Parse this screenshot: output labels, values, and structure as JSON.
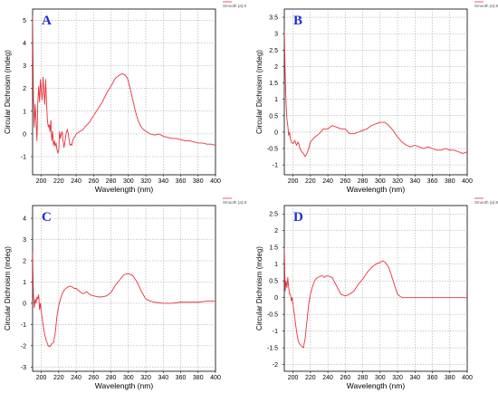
{
  "colors": {
    "series": "#e8323c",
    "label": "#1c2bd1",
    "grid": "#9a9a9a",
    "axis": "#000000"
  },
  "chart_data": [
    {
      "type": "line",
      "panel_label": "A",
      "xlabel": "Wavelength (nm)",
      "ylabel": "Circular Dichroism (mdeg)",
      "xlim": [
        190,
        400
      ],
      "ylim": [
        -1.8,
        5.5
      ],
      "grid": true,
      "legend_position": "top-right",
      "xticks": [
        200,
        220,
        240,
        260,
        280,
        300,
        320,
        340,
        360,
        380,
        400
      ],
      "yticks": [
        -1,
        0,
        1,
        2,
        3,
        4,
        5
      ],
      "series": [
        {
          "name": "Smooth (a):8",
          "x": [
            190,
            191,
            192,
            193,
            194,
            195,
            196,
            197,
            198,
            199,
            200,
            201,
            202,
            203,
            204,
            205,
            206,
            207,
            208,
            209,
            210,
            211,
            212,
            213,
            214,
            215,
            216,
            217,
            218,
            219,
            220,
            221,
            222,
            223,
            224,
            225,
            226,
            227,
            228,
            229,
            230,
            231,
            232,
            233,
            234,
            235,
            236,
            237,
            238,
            239,
            240,
            242,
            244,
            246,
            248,
            250,
            255,
            260,
            265,
            270,
            275,
            280,
            285,
            290,
            293,
            296,
            299,
            302,
            305,
            308,
            311,
            314,
            317,
            320,
            325,
            330,
            335,
            340,
            345,
            350,
            355,
            360,
            365,
            370,
            375,
            380,
            385,
            390,
            395,
            400
          ],
          "y": [
            5.2,
            1.5,
            0.3,
            1.3,
            0.6,
            -0.3,
            1.4,
            2.1,
            1.4,
            2.4,
            1.9,
            1.5,
            2.5,
            1.9,
            1.3,
            2.4,
            1.4,
            0.6,
            0.3,
            0.4,
            0.1,
            0.6,
            -0.3,
            0.1,
            -0.5,
            -0.3,
            -0.55,
            -0.4,
            -0.7,
            -0.85,
            -0.7,
            0.1,
            -0.2,
            0.0,
            0.1,
            -0.3,
            -0.6,
            -0.4,
            -0.1,
            0.1,
            0.2,
            0.0,
            -0.3,
            -0.5,
            -0.45,
            -0.5,
            -0.3,
            -0.2,
            -0.15,
            -0.1,
            0.0,
            0.05,
            0.1,
            0.15,
            0.2,
            0.3,
            0.5,
            0.8,
            1.1,
            1.4,
            1.8,
            2.1,
            2.45,
            2.6,
            2.65,
            2.6,
            2.45,
            2.0,
            1.5,
            1.0,
            0.6,
            0.35,
            0.2,
            0.12,
            0.0,
            -0.05,
            0.0,
            -0.1,
            -0.15,
            -0.2,
            -0.2,
            -0.25,
            -0.3,
            -0.3,
            -0.35,
            -0.4,
            -0.4,
            -0.45,
            -0.45,
            -0.5
          ]
        }
      ]
    },
    {
      "type": "line",
      "panel_label": "B",
      "xlabel": "Wavelength (nm)",
      "ylabel": "Circular Dichroism (mdeg)",
      "xlim": [
        190,
        400
      ],
      "ylim": [
        -1.3,
        3.75
      ],
      "grid": true,
      "legend_position": "top-right",
      "xticks": [
        200,
        220,
        240,
        260,
        280,
        300,
        320,
        340,
        360,
        380,
        400
      ],
      "yticks": [
        -1,
        -0.5,
        0,
        0.5,
        1,
        1.5,
        2,
        2.5,
        3,
        3.5
      ],
      "series": [
        {
          "name": "Smooth (a):8",
          "x": [
            190,
            191,
            192,
            193,
            194,
            195,
            196,
            197,
            198,
            200,
            202,
            204,
            206,
            208,
            210,
            212,
            214,
            216,
            218,
            220,
            225,
            230,
            235,
            240,
            245,
            250,
            255,
            260,
            265,
            270,
            275,
            280,
            285,
            290,
            295,
            300,
            305,
            310,
            315,
            320,
            325,
            330,
            335,
            340,
            345,
            350,
            355,
            360,
            365,
            370,
            375,
            380,
            385,
            390,
            395,
            400
          ],
          "y": [
            3.1,
            1.8,
            0.9,
            0.4,
            0.2,
            -0.1,
            0.0,
            -0.2,
            -0.3,
            -0.35,
            -0.25,
            -0.4,
            -0.3,
            -0.5,
            -0.6,
            -0.65,
            -0.75,
            -0.65,
            -0.5,
            -0.3,
            -0.15,
            -0.05,
            0.1,
            0.1,
            0.2,
            0.15,
            0.1,
            0.1,
            -0.05,
            -0.05,
            0.0,
            0.05,
            0.1,
            0.2,
            0.25,
            0.3,
            0.3,
            0.2,
            0.05,
            -0.15,
            -0.3,
            -0.4,
            -0.45,
            -0.4,
            -0.45,
            -0.5,
            -0.45,
            -0.5,
            -0.55,
            -0.55,
            -0.5,
            -0.55,
            -0.55,
            -0.6,
            -0.65,
            -0.6
          ]
        }
      ]
    },
    {
      "type": "line",
      "panel_label": "C",
      "xlabel": "Wavelength (nm)",
      "ylabel": "Circular Dichroism (mdeg)",
      "xlim": [
        190,
        400
      ],
      "ylim": [
        -3.2,
        4.6
      ],
      "grid": true,
      "legend_position": "top-right",
      "xticks": [
        200,
        220,
        240,
        260,
        280,
        300,
        320,
        340,
        360,
        380,
        400
      ],
      "yticks": [
        -3,
        -2,
        -1,
        0,
        1,
        2,
        3,
        4
      ],
      "series": [
        {
          "name": "Smooth (a):8",
          "x": [
            190,
            191,
            192,
            193,
            194,
            195,
            196,
            197,
            198,
            199,
            200,
            202,
            204,
            206,
            208,
            210,
            212,
            214,
            216,
            218,
            220,
            222,
            224,
            226,
            228,
            230,
            232,
            234,
            236,
            238,
            240,
            244,
            248,
            252,
            256,
            260,
            265,
            270,
            275,
            280,
            285,
            290,
            295,
            300,
            305,
            310,
            315,
            320,
            325,
            330,
            340,
            350,
            360,
            370,
            380,
            390,
            400
          ],
          "y": [
            2.4,
            0.3,
            -0.2,
            0.2,
            0.0,
            0.3,
            0.2,
            0.4,
            -0.3,
            0.0,
            -0.4,
            -1.0,
            -1.5,
            -1.8,
            -2.0,
            -2.05,
            -1.9,
            -1.85,
            -1.4,
            -0.6,
            -0.1,
            0.2,
            0.45,
            0.6,
            0.7,
            0.75,
            0.8,
            0.8,
            0.75,
            0.7,
            0.7,
            0.55,
            0.45,
            0.55,
            0.4,
            0.35,
            0.3,
            0.3,
            0.35,
            0.5,
            0.85,
            1.1,
            1.35,
            1.4,
            1.3,
            1.0,
            0.55,
            0.2,
            0.1,
            0.05,
            0.0,
            0.0,
            0.05,
            0.05,
            0.05,
            0.1,
            0.1
          ]
        }
      ]
    },
    {
      "type": "line",
      "panel_label": "D",
      "xlabel": "Wavelength (nm)",
      "ylabel": "Circular Dichroism (mdeg)",
      "xlim": [
        190,
        400
      ],
      "ylim": [
        -2.2,
        2.75
      ],
      "grid": true,
      "legend_position": "top-right",
      "xticks": [
        200,
        220,
        240,
        260,
        280,
        300,
        320,
        340,
        360,
        380,
        400
      ],
      "yticks": [
        -2,
        -1.5,
        -1,
        -0.5,
        0,
        0.5,
        1,
        1.5,
        2,
        2.5
      ],
      "series": [
        {
          "name": "Smooth (a):8",
          "x": [
            190,
            191,
            192,
            193,
            194,
            195,
            196,
            197,
            198,
            199,
            200,
            202,
            204,
            206,
            208,
            210,
            212,
            214,
            216,
            218,
            220,
            222,
            224,
            226,
            228,
            230,
            232,
            234,
            236,
            238,
            240,
            245,
            250,
            255,
            260,
            265,
            270,
            275,
            280,
            285,
            290,
            295,
            300,
            303,
            306,
            310,
            315,
            320,
            325,
            330,
            340,
            350,
            360,
            370,
            380,
            390,
            400
          ],
          "y": [
            1.5,
            0.2,
            0.5,
            0.3,
            0.6,
            0.3,
            0.1,
            0.1,
            -0.1,
            0.0,
            -0.2,
            -0.6,
            -1.0,
            -1.3,
            -1.4,
            -1.45,
            -1.5,
            -1.2,
            -0.7,
            -0.2,
            0.1,
            0.3,
            0.45,
            0.55,
            0.6,
            0.62,
            0.65,
            0.65,
            0.6,
            0.65,
            0.65,
            0.6,
            0.35,
            0.1,
            0.05,
            0.1,
            0.2,
            0.4,
            0.55,
            0.75,
            0.9,
            1.0,
            1.05,
            1.1,
            1.05,
            0.9,
            0.5,
            0.1,
            0.0,
            0.0,
            0.0,
            0.0,
            0.0,
            0.0,
            0.0,
            0.0,
            0.0
          ]
        }
      ]
    }
  ]
}
